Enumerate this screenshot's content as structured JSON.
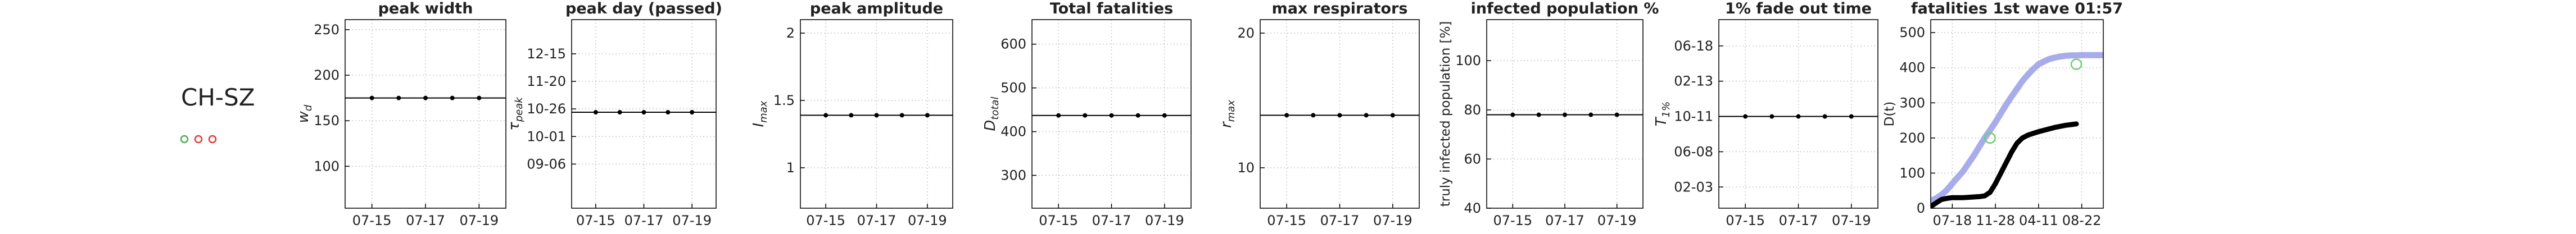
{
  "region": "CH-SZ",
  "chart_data": [
    {
      "type": "line",
      "title": "peak width",
      "ylabel": "w",
      "ylabel_sub": "d",
      "categories": [
        "07-15",
        null,
        "07-17",
        null,
        "07-19"
      ],
      "values": [
        175,
        175,
        175,
        175,
        175
      ],
      "ylim": [
        54,
        261
      ],
      "yticks": [
        100,
        150,
        200,
        250
      ],
      "grid": true,
      "color": "#000000"
    },
    {
      "type": "line",
      "title": "peak day (passed)",
      "ylabel": "τ",
      "ylabel_sub": "peak",
      "y_format": "date",
      "categories": [
        "07-15",
        null,
        "07-17",
        null,
        "07-19"
      ],
      "values": [
        "10-23",
        "10-23",
        "10-23",
        "10-23",
        "10-23"
      ],
      "ylim": [
        "07-28",
        "01-15"
      ],
      "yticks": [
        "09-06",
        "10-01",
        "10-26",
        "11-20",
        "12-15"
      ],
      "grid": true,
      "color": "#000000"
    },
    {
      "type": "line",
      "title": "peak amplitude",
      "ylabel": "I",
      "ylabel_sub": "max",
      "categories": [
        "07-15",
        null,
        "07-17",
        null,
        "07-19"
      ],
      "values": [
        1.39,
        1.39,
        1.39,
        1.39,
        1.39
      ],
      "ylim": [
        0.7,
        2.1
      ],
      "yticks": [
        1,
        1.5,
        2
      ],
      "grid": true,
      "color": "#000000"
    },
    {
      "type": "line",
      "title": "Total fatalities",
      "ylabel": "D",
      "ylabel_sub": "total",
      "categories": [
        "07-15",
        null,
        "07-17",
        null,
        "07-19"
      ],
      "values": [
        437,
        437,
        437,
        437,
        437
      ],
      "ylim": [
        225,
        656
      ],
      "yticks": [
        300,
        400,
        500,
        600
      ],
      "grid": true,
      "color": "#000000"
    },
    {
      "type": "line",
      "title": "max respirators",
      "ylabel": "r",
      "ylabel_sub": "max",
      "categories": [
        "07-15",
        null,
        "07-17",
        null,
        "07-19"
      ],
      "values": [
        13.9,
        13.9,
        13.9,
        13.9,
        13.9
      ],
      "ylim": [
        7,
        21
      ],
      "yticks": [
        10,
        20
      ],
      "grid": true,
      "color": "#000000"
    },
    {
      "type": "line",
      "title": "infected population %",
      "ylabel": "truly infected population [%]",
      "categories": [
        "07-15",
        null,
        "07-17",
        null,
        "07-19"
      ],
      "values": [
        78,
        78,
        78,
        78,
        78
      ],
      "ylim": [
        40,
        116.7
      ],
      "yticks": [
        40,
        60,
        80,
        100
      ],
      "grid": true,
      "color": "#000000"
    },
    {
      "type": "line",
      "title": "1% fade out time",
      "ylabel": "T",
      "ylabel_sub": "1%",
      "y_format": "date",
      "categories": [
        "07-15",
        null,
        "07-17",
        null,
        "07-19"
      ],
      "values": [
        "10-11",
        "10-11",
        "10-11",
        "10-11",
        "10-11"
      ],
      "ylim": [
        "11-20",
        "09-19"
      ],
      "yticks": [
        "02-03",
        "06-08",
        "10-11",
        "02-13",
        "06-18"
      ],
      "grid": true,
      "color": "#000000"
    },
    {
      "type": "multiline",
      "title": "fatalities 1st wave 01:57",
      "ylabel": "D(t)",
      "categories": [
        null,
        null,
        null,
        null,
        "07-18",
        null,
        null,
        null,
        null,
        null,
        null,
        null,
        "11-28",
        null,
        null,
        null,
        null,
        null,
        null,
        null,
        "04-11",
        null,
        null,
        null,
        null,
        null,
        null,
        null,
        "08-22",
        null,
        null,
        null,
        null
      ],
      "series": [
        {
          "color": "#9fa3e8",
          "values": [
            20,
            28,
            38,
            52,
            70,
            88,
            105,
            128,
            150,
            175,
            200,
            222,
            245,
            270,
            295,
            318,
            340,
            362,
            380,
            396,
            410,
            418,
            425,
            429,
            432,
            434,
            435,
            435,
            436,
            436,
            436,
            436,
            436
          ]
        },
        {
          "color": "#000000",
          "values": [
            5,
            15,
            25,
            28,
            30,
            30,
            30,
            31,
            32,
            33,
            35,
            45,
            70,
            100,
            130,
            160,
            185,
            200,
            208,
            213,
            218,
            222,
            226,
            230,
            233,
            236,
            238,
            240,
            null,
            null,
            null,
            null,
            null
          ]
        },
        {
          "color": "#6ccf6c",
          "marker": "circle",
          "values": [
            null,
            null,
            null,
            null,
            null,
            null,
            null,
            null,
            null,
            null,
            null,
            200,
            null,
            null,
            null,
            null,
            null,
            null,
            null,
            null,
            null,
            null,
            null,
            null,
            null,
            null,
            null,
            410,
            null,
            null,
            null,
            null,
            null
          ]
        }
      ],
      "ylim": [
        0,
        537
      ],
      "yticks": [
        0,
        100,
        200,
        300,
        400,
        500
      ],
      "grid": true
    }
  ]
}
